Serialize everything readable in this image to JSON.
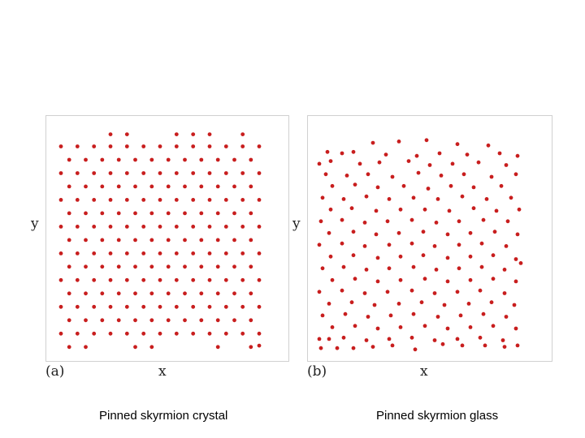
{
  "captions": {
    "left": "Pinned skyrmion crystal",
    "right": "Pinned skyrmion glass"
  },
  "colors": {
    "dot": "#c81e1e",
    "frame": "#d0d0d0"
  },
  "chart_data": [
    {
      "type": "scatter",
      "panel_label": "(a)",
      "xlabel": "x",
      "ylabel": "y",
      "title": "",
      "xlim": [
        0,
        12
      ],
      "ylim": [
        0,
        16.5
      ],
      "grid": false,
      "points": [
        [
          3.0,
          16.4
        ],
        [
          4.0,
          16.4
        ],
        [
          7.0,
          16.4
        ],
        [
          8.0,
          16.4
        ],
        [
          9.0,
          16.4
        ],
        [
          11.0,
          16.4
        ],
        [
          0,
          15.5
        ],
        [
          1,
          15.5
        ],
        [
          2,
          15.5
        ],
        [
          3,
          15.5
        ],
        [
          4,
          15.5
        ],
        [
          5,
          15.5
        ],
        [
          6,
          15.5
        ],
        [
          7,
          15.5
        ],
        [
          8,
          15.5
        ],
        [
          9,
          15.5
        ],
        [
          10,
          15.5
        ],
        [
          11,
          15.5
        ],
        [
          12,
          15.5
        ],
        [
          0.5,
          14.5
        ],
        [
          1.5,
          14.5
        ],
        [
          2.5,
          14.5
        ],
        [
          3.5,
          14.5
        ],
        [
          4.5,
          14.5
        ],
        [
          5.5,
          14.5
        ],
        [
          6.5,
          14.5
        ],
        [
          7.5,
          14.5
        ],
        [
          8.5,
          14.5
        ],
        [
          9.5,
          14.5
        ],
        [
          10.5,
          14.5
        ],
        [
          11.5,
          14.5
        ],
        [
          0,
          13.5
        ],
        [
          1,
          13.5
        ],
        [
          2,
          13.5
        ],
        [
          3,
          13.5
        ],
        [
          4,
          13.5
        ],
        [
          5,
          13.5
        ],
        [
          6,
          13.5
        ],
        [
          7,
          13.5
        ],
        [
          8,
          13.5
        ],
        [
          9,
          13.5
        ],
        [
          10,
          13.5
        ],
        [
          11,
          13.5
        ],
        [
          12,
          13.5
        ],
        [
          0.5,
          12.5
        ],
        [
          1.5,
          12.5
        ],
        [
          2.5,
          12.5
        ],
        [
          3.5,
          12.5
        ],
        [
          4.5,
          12.5
        ],
        [
          5.5,
          12.5
        ],
        [
          6.5,
          12.5
        ],
        [
          7.5,
          12.5
        ],
        [
          8.5,
          12.5
        ],
        [
          9.5,
          12.5
        ],
        [
          10.5,
          12.5
        ],
        [
          11.5,
          12.5
        ],
        [
          0,
          11.5
        ],
        [
          1,
          11.5
        ],
        [
          2,
          11.5
        ],
        [
          3,
          11.5
        ],
        [
          4,
          11.5
        ],
        [
          5,
          11.5
        ],
        [
          6,
          11.5
        ],
        [
          7,
          11.5
        ],
        [
          8,
          11.5
        ],
        [
          9,
          11.5
        ],
        [
          10,
          11.5
        ],
        [
          11,
          11.5
        ],
        [
          12,
          11.5
        ],
        [
          0.5,
          10.5
        ],
        [
          1.5,
          10.5
        ],
        [
          2.5,
          10.5
        ],
        [
          3.5,
          10.5
        ],
        [
          4.5,
          10.5
        ],
        [
          5.5,
          10.5
        ],
        [
          6.5,
          10.5
        ],
        [
          7.5,
          10.5
        ],
        [
          8.5,
          10.5
        ],
        [
          9.5,
          10.5
        ],
        [
          10.5,
          10.5
        ],
        [
          11.5,
          10.5
        ],
        [
          0,
          9.5
        ],
        [
          1,
          9.5
        ],
        [
          2,
          9.5
        ],
        [
          3,
          9.5
        ],
        [
          4,
          9.5
        ],
        [
          5,
          9.5
        ],
        [
          6,
          9.5
        ],
        [
          7,
          9.5
        ],
        [
          8,
          9.5
        ],
        [
          9,
          9.5
        ],
        [
          10,
          9.5
        ],
        [
          11,
          9.5
        ],
        [
          12,
          9.5
        ],
        [
          0.5,
          8.5
        ],
        [
          1.5,
          8.5
        ],
        [
          2.5,
          8.5
        ],
        [
          3.5,
          8.5
        ],
        [
          4.5,
          8.5
        ],
        [
          5.5,
          8.5
        ],
        [
          6.5,
          8.5
        ],
        [
          7.5,
          8.5
        ],
        [
          8.5,
          8.5
        ],
        [
          9.5,
          8.5
        ],
        [
          10.5,
          8.5
        ],
        [
          11.5,
          8.5
        ],
        [
          0,
          7.5
        ],
        [
          1,
          7.5
        ],
        [
          2,
          7.5
        ],
        [
          3,
          7.5
        ],
        [
          4,
          7.5
        ],
        [
          5,
          7.5
        ],
        [
          6,
          7.5
        ],
        [
          7,
          7.5
        ],
        [
          8,
          7.5
        ],
        [
          9,
          7.5
        ],
        [
          10,
          7.5
        ],
        [
          11,
          7.5
        ],
        [
          12,
          7.5
        ],
        [
          0.5,
          6.5
        ],
        [
          1.5,
          6.5
        ],
        [
          2.5,
          6.5
        ],
        [
          3.5,
          6.5
        ],
        [
          4.5,
          6.5
        ],
        [
          5.5,
          6.5
        ],
        [
          6.5,
          6.5
        ],
        [
          7.5,
          6.5
        ],
        [
          8.5,
          6.5
        ],
        [
          9.5,
          6.5
        ],
        [
          10.5,
          6.5
        ],
        [
          11.5,
          6.5
        ],
        [
          0,
          5.5
        ],
        [
          1,
          5.5
        ],
        [
          2,
          5.5
        ],
        [
          3,
          5.5
        ],
        [
          4,
          5.5
        ],
        [
          5,
          5.5
        ],
        [
          6,
          5.5
        ],
        [
          7,
          5.5
        ],
        [
          8,
          5.5
        ],
        [
          9,
          5.5
        ],
        [
          10,
          5.5
        ],
        [
          11,
          5.5
        ],
        [
          12,
          5.5
        ],
        [
          0.5,
          4.5
        ],
        [
          1.5,
          4.5
        ],
        [
          2.5,
          4.5
        ],
        [
          3.5,
          4.5
        ],
        [
          4.5,
          4.5
        ],
        [
          5.5,
          4.5
        ],
        [
          6.5,
          4.5
        ],
        [
          7.5,
          4.5
        ],
        [
          8.5,
          4.5
        ],
        [
          9.5,
          4.5
        ],
        [
          10.5,
          4.5
        ],
        [
          11.5,
          4.5
        ],
        [
          0,
          3.5
        ],
        [
          1,
          3.5
        ],
        [
          2,
          3.5
        ],
        [
          3,
          3.5
        ],
        [
          4,
          3.5
        ],
        [
          5,
          3.5
        ],
        [
          6,
          3.5
        ],
        [
          7,
          3.5
        ],
        [
          8,
          3.5
        ],
        [
          9,
          3.5
        ],
        [
          10,
          3.5
        ],
        [
          11,
          3.5
        ],
        [
          12,
          3.5
        ],
        [
          0.5,
          2.5
        ],
        [
          1.5,
          2.5
        ],
        [
          2.5,
          2.5
        ],
        [
          3.5,
          2.5
        ],
        [
          4.5,
          2.5
        ],
        [
          5.5,
          2.5
        ],
        [
          6.5,
          2.5
        ],
        [
          7.5,
          2.5
        ],
        [
          8.5,
          2.5
        ],
        [
          9.5,
          2.5
        ],
        [
          10.5,
          2.5
        ],
        [
          11.5,
          2.5
        ],
        [
          0,
          1.5
        ],
        [
          1,
          1.5
        ],
        [
          2,
          1.5
        ],
        [
          3,
          1.5
        ],
        [
          4,
          1.5
        ],
        [
          5,
          1.5
        ],
        [
          6,
          1.5
        ],
        [
          7,
          1.5
        ],
        [
          8,
          1.5
        ],
        [
          9,
          1.5
        ],
        [
          10,
          1.5
        ],
        [
          11,
          1.5
        ],
        [
          12,
          1.5
        ],
        [
          0.5,
          0.5
        ],
        [
          1.5,
          0.5
        ],
        [
          4.5,
          0.5
        ],
        [
          5.5,
          0.5
        ],
        [
          9.5,
          0.5
        ],
        [
          11.5,
          0.5
        ],
        [
          12,
          0.6
        ]
      ]
    },
    {
      "type": "scatter",
      "panel_label": "(b)",
      "xlabel": "x",
      "ylabel": "y",
      "title": "",
      "xlim": [
        0,
        12.5
      ],
      "ylim": [
        0,
        16.5
      ],
      "grid": false,
      "points": [
        [
          3.4,
          16.0
        ],
        [
          5.0,
          16.1
        ],
        [
          6.7,
          16.2
        ],
        [
          8.6,
          15.9
        ],
        [
          10.5,
          15.8
        ],
        [
          0.6,
          15.3
        ],
        [
          1.5,
          15.2
        ],
        [
          2.2,
          15.3
        ],
        [
          4.2,
          15.1
        ],
        [
          6.1,
          15.0
        ],
        [
          7.5,
          15.2
        ],
        [
          9.2,
          15.1
        ],
        [
          11.2,
          15.2
        ],
        [
          12.3,
          15.0
        ],
        [
          0.1,
          14.4
        ],
        [
          0.8,
          14.6
        ],
        [
          2.6,
          14.4
        ],
        [
          3.8,
          14.5
        ],
        [
          5.6,
          14.6
        ],
        [
          6.9,
          14.3
        ],
        [
          8.3,
          14.4
        ],
        [
          9.9,
          14.5
        ],
        [
          11.6,
          14.3
        ],
        [
          0.5,
          13.6
        ],
        [
          1.8,
          13.5
        ],
        [
          3.1,
          13.6
        ],
        [
          4.6,
          13.4
        ],
        [
          6.2,
          13.7
        ],
        [
          7.6,
          13.5
        ],
        [
          9.0,
          13.6
        ],
        [
          10.7,
          13.4
        ],
        [
          12.2,
          13.6
        ],
        [
          0.9,
          12.7
        ],
        [
          2.3,
          12.8
        ],
        [
          3.7,
          12.6
        ],
        [
          5.3,
          12.7
        ],
        [
          6.8,
          12.5
        ],
        [
          8.2,
          12.7
        ],
        [
          9.6,
          12.6
        ],
        [
          11.3,
          12.7
        ],
        [
          0.3,
          11.8
        ],
        [
          1.6,
          11.7
        ],
        [
          3.0,
          11.9
        ],
        [
          4.4,
          11.7
        ],
        [
          5.9,
          11.8
        ],
        [
          7.4,
          11.7
        ],
        [
          8.9,
          11.9
        ],
        [
          10.4,
          11.7
        ],
        [
          11.9,
          11.8
        ],
        [
          0.8,
          10.9
        ],
        [
          2.1,
          11.0
        ],
        [
          3.6,
          10.8
        ],
        [
          5.1,
          10.9
        ],
        [
          6.6,
          10.9
        ],
        [
          8.1,
          10.8
        ],
        [
          9.6,
          11.0
        ],
        [
          11.0,
          10.8
        ],
        [
          12.4,
          10.9
        ],
        [
          0.2,
          10.0
        ],
        [
          1.5,
          10.1
        ],
        [
          2.9,
          9.9
        ],
        [
          4.3,
          10.0
        ],
        [
          5.8,
          10.1
        ],
        [
          7.3,
          9.9
        ],
        [
          8.7,
          10.0
        ],
        [
          10.2,
          10.1
        ],
        [
          11.7,
          10.0
        ],
        [
          0.7,
          9.1
        ],
        [
          2.2,
          9.2
        ],
        [
          3.6,
          9.0
        ],
        [
          5.0,
          9.1
        ],
        [
          6.5,
          9.2
        ],
        [
          8.0,
          9.0
        ],
        [
          9.4,
          9.1
        ],
        [
          10.9,
          9.2
        ],
        [
          12.3,
          9.0
        ],
        [
          0.1,
          8.2
        ],
        [
          1.5,
          8.3
        ],
        [
          2.9,
          8.1
        ],
        [
          4.4,
          8.2
        ],
        [
          5.8,
          8.3
        ],
        [
          7.2,
          8.1
        ],
        [
          8.7,
          8.2
        ],
        [
          10.1,
          8.3
        ],
        [
          11.6,
          8.1
        ],
        [
          0.8,
          7.3
        ],
        [
          2.2,
          7.4
        ],
        [
          3.7,
          7.2
        ],
        [
          5.1,
          7.3
        ],
        [
          6.5,
          7.4
        ],
        [
          8.0,
          7.2
        ],
        [
          9.4,
          7.3
        ],
        [
          10.8,
          7.4
        ],
        [
          12.2,
          7.1
        ],
        [
          0.3,
          6.4
        ],
        [
          1.6,
          6.5
        ],
        [
          3.0,
          6.3
        ],
        [
          4.4,
          6.4
        ],
        [
          5.9,
          6.5
        ],
        [
          7.3,
          6.3
        ],
        [
          8.7,
          6.4
        ],
        [
          10.1,
          6.5
        ],
        [
          11.5,
          6.3
        ],
        [
          12.5,
          6.8
        ],
        [
          0.9,
          5.5
        ],
        [
          2.3,
          5.6
        ],
        [
          3.7,
          5.4
        ],
        [
          5.1,
          5.5
        ],
        [
          6.6,
          5.6
        ],
        [
          8.0,
          5.4
        ],
        [
          9.4,
          5.5
        ],
        [
          10.8,
          5.6
        ],
        [
          12.2,
          5.4
        ],
        [
          0.1,
          4.6
        ],
        [
          1.5,
          4.7
        ],
        [
          2.9,
          4.5
        ],
        [
          4.3,
          4.6
        ],
        [
          5.8,
          4.7
        ],
        [
          7.2,
          4.5
        ],
        [
          8.6,
          4.6
        ],
        [
          10.0,
          4.7
        ],
        [
          11.5,
          4.5
        ],
        [
          0.7,
          3.7
        ],
        [
          2.1,
          3.8
        ],
        [
          3.5,
          3.6
        ],
        [
          5.0,
          3.7
        ],
        [
          6.4,
          3.8
        ],
        [
          7.8,
          3.6
        ],
        [
          9.3,
          3.7
        ],
        [
          10.7,
          3.8
        ],
        [
          12.1,
          3.6
        ],
        [
          0.3,
          2.8
        ],
        [
          1.7,
          2.9
        ],
        [
          3.1,
          2.7
        ],
        [
          4.5,
          2.8
        ],
        [
          5.9,
          2.9
        ],
        [
          7.4,
          2.7
        ],
        [
          8.8,
          2.8
        ],
        [
          10.2,
          2.9
        ],
        [
          11.6,
          2.7
        ],
        [
          0.9,
          1.9
        ],
        [
          2.3,
          2.0
        ],
        [
          3.7,
          1.8
        ],
        [
          5.1,
          1.9
        ],
        [
          6.6,
          2.0
        ],
        [
          8.0,
          1.8
        ],
        [
          9.4,
          1.9
        ],
        [
          10.8,
          2.0
        ],
        [
          12.2,
          1.8
        ],
        [
          0.1,
          1.0
        ],
        [
          0.7,
          1.0
        ],
        [
          1.6,
          1.1
        ],
        [
          3.0,
          0.9
        ],
        [
          4.4,
          1.0
        ],
        [
          5.8,
          1.1
        ],
        [
          7.2,
          0.9
        ],
        [
          8.6,
          1.0
        ],
        [
          10.0,
          1.1
        ],
        [
          11.4,
          0.9
        ],
        [
          0.2,
          0.3
        ],
        [
          1.2,
          0.3
        ],
        [
          2.2,
          0.3
        ],
        [
          3.4,
          0.4
        ],
        [
          4.6,
          0.5
        ],
        [
          6.0,
          0.2
        ],
        [
          7.7,
          0.6
        ],
        [
          8.9,
          0.5
        ],
        [
          10.3,
          0.5
        ],
        [
          11.5,
          0.4
        ],
        [
          12.3,
          0.5
        ]
      ]
    }
  ]
}
